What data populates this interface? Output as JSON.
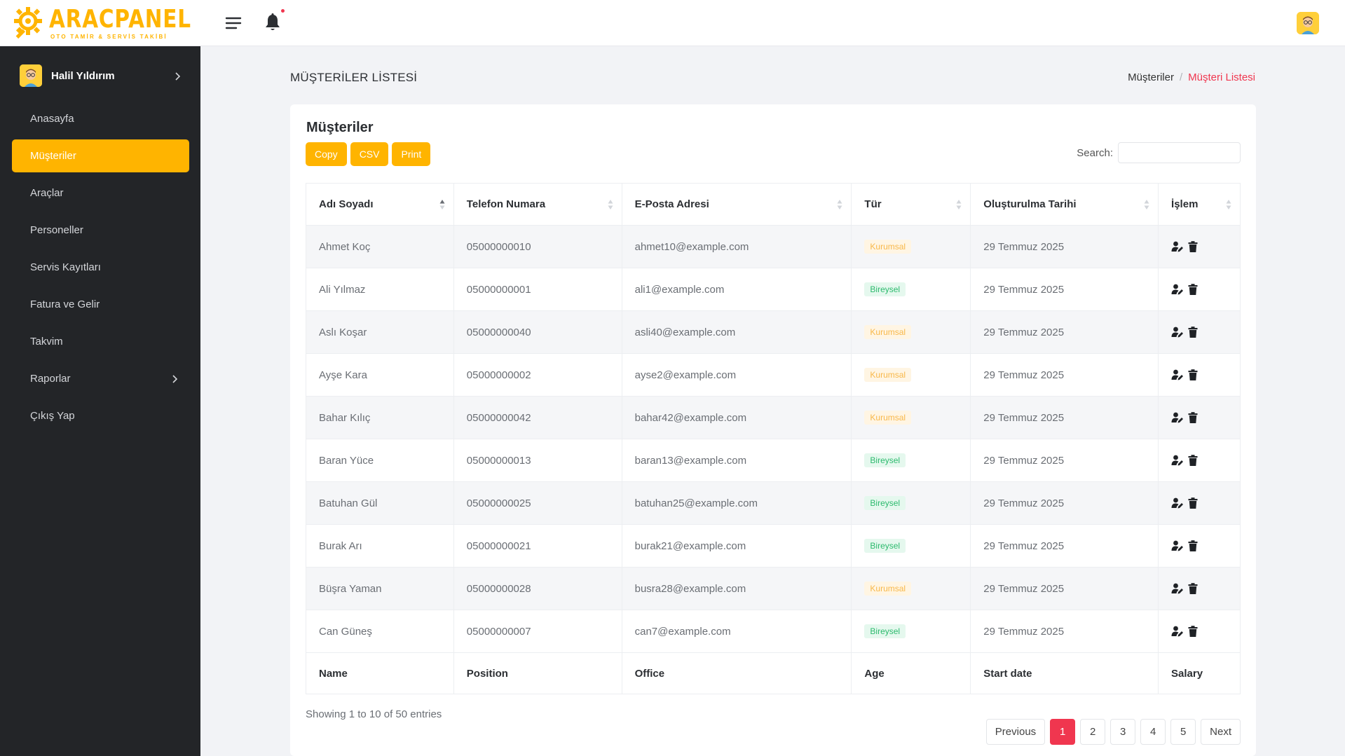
{
  "brand": {
    "name": "ARACPANEL",
    "tagline": "OTO TAMİR & SERVİS TAKİBİ",
    "color": "#ffb400"
  },
  "header": {
    "menu_icon": "hamburger-icon",
    "notification_icon": "bell-icon"
  },
  "sidebar": {
    "user": {
      "name": "Halil Yıldırım"
    },
    "items": [
      {
        "label": "Anasayfa"
      },
      {
        "label": "Müşteriler",
        "active": true
      },
      {
        "label": "Araçlar"
      },
      {
        "label": "Personeller"
      },
      {
        "label": "Servis Kayıtları"
      },
      {
        "label": "Fatura ve Gelir"
      },
      {
        "label": "Takvim"
      },
      {
        "label": "Raporlar",
        "has_children": true
      },
      {
        "label": "Çıkış Yap"
      }
    ]
  },
  "page": {
    "title": "MÜŞTERİLER LİSTESİ",
    "breadcrumb": {
      "parent": "Müşteriler",
      "separator": "/",
      "current": "Müşteri Listesi"
    }
  },
  "card": {
    "title": "Müşteriler",
    "buttons": {
      "copy": "Copy",
      "csv": "CSV",
      "print": "Print"
    },
    "search_label": "Search:",
    "columns": [
      "Adı Soyadı",
      "Telefon Numara",
      "E-Posta Adresi",
      "Tür",
      "Oluşturulma Tarihi",
      "İşlem"
    ],
    "footer_columns": [
      "Name",
      "Position",
      "Office",
      "Age",
      "Start date",
      "Salary"
    ],
    "rows": [
      {
        "name": "Ahmet Koç",
        "phone": "05000000010",
        "email": "ahmet10@example.com",
        "type": "Kurumsal",
        "date": "29 Temmuz 2025"
      },
      {
        "name": "Ali Yılmaz",
        "phone": "05000000001",
        "email": "ali1@example.com",
        "type": "Bireysel",
        "date": "29 Temmuz 2025"
      },
      {
        "name": "Aslı Koşar",
        "phone": "05000000040",
        "email": "asli40@example.com",
        "type": "Kurumsal",
        "date": "29 Temmuz 2025"
      },
      {
        "name": "Ayşe Kara",
        "phone": "05000000002",
        "email": "ayse2@example.com",
        "type": "Kurumsal",
        "date": "29 Temmuz 2025"
      },
      {
        "name": "Bahar Kılıç",
        "phone": "05000000042",
        "email": "bahar42@example.com",
        "type": "Kurumsal",
        "date": "29 Temmuz 2025"
      },
      {
        "name": "Baran Yüce",
        "phone": "05000000013",
        "email": "baran13@example.com",
        "type": "Bireysel",
        "date": "29 Temmuz 2025"
      },
      {
        "name": "Batuhan Gül",
        "phone": "05000000025",
        "email": "batuhan25@example.com",
        "type": "Bireysel",
        "date": "29 Temmuz 2025"
      },
      {
        "name": "Burak Arı",
        "phone": "05000000021",
        "email": "burak21@example.com",
        "type": "Bireysel",
        "date": "29 Temmuz 2025"
      },
      {
        "name": "Büşra Yaman",
        "phone": "05000000028",
        "email": "busra28@example.com",
        "type": "Kurumsal",
        "date": "29 Temmuz 2025"
      },
      {
        "name": "Can Güneş",
        "phone": "05000000007",
        "email": "can7@example.com",
        "type": "Bireysel",
        "date": "29 Temmuz 2025"
      }
    ],
    "row_actions": {
      "edit_icon": "user-edit-icon",
      "delete_icon": "trash-icon"
    },
    "info": "Showing 1 to 10 of 50 entries",
    "pagination": {
      "previous": "Previous",
      "next": "Next",
      "pages": [
        "1",
        "2",
        "3",
        "4",
        "5"
      ],
      "current": "1"
    }
  },
  "colors": {
    "accent": "#ffb400",
    "danger": "#f0364f",
    "sidebar_bg": "#232528",
    "kurumsal": "#f8b84a",
    "bireysel": "#2cba6d"
  }
}
